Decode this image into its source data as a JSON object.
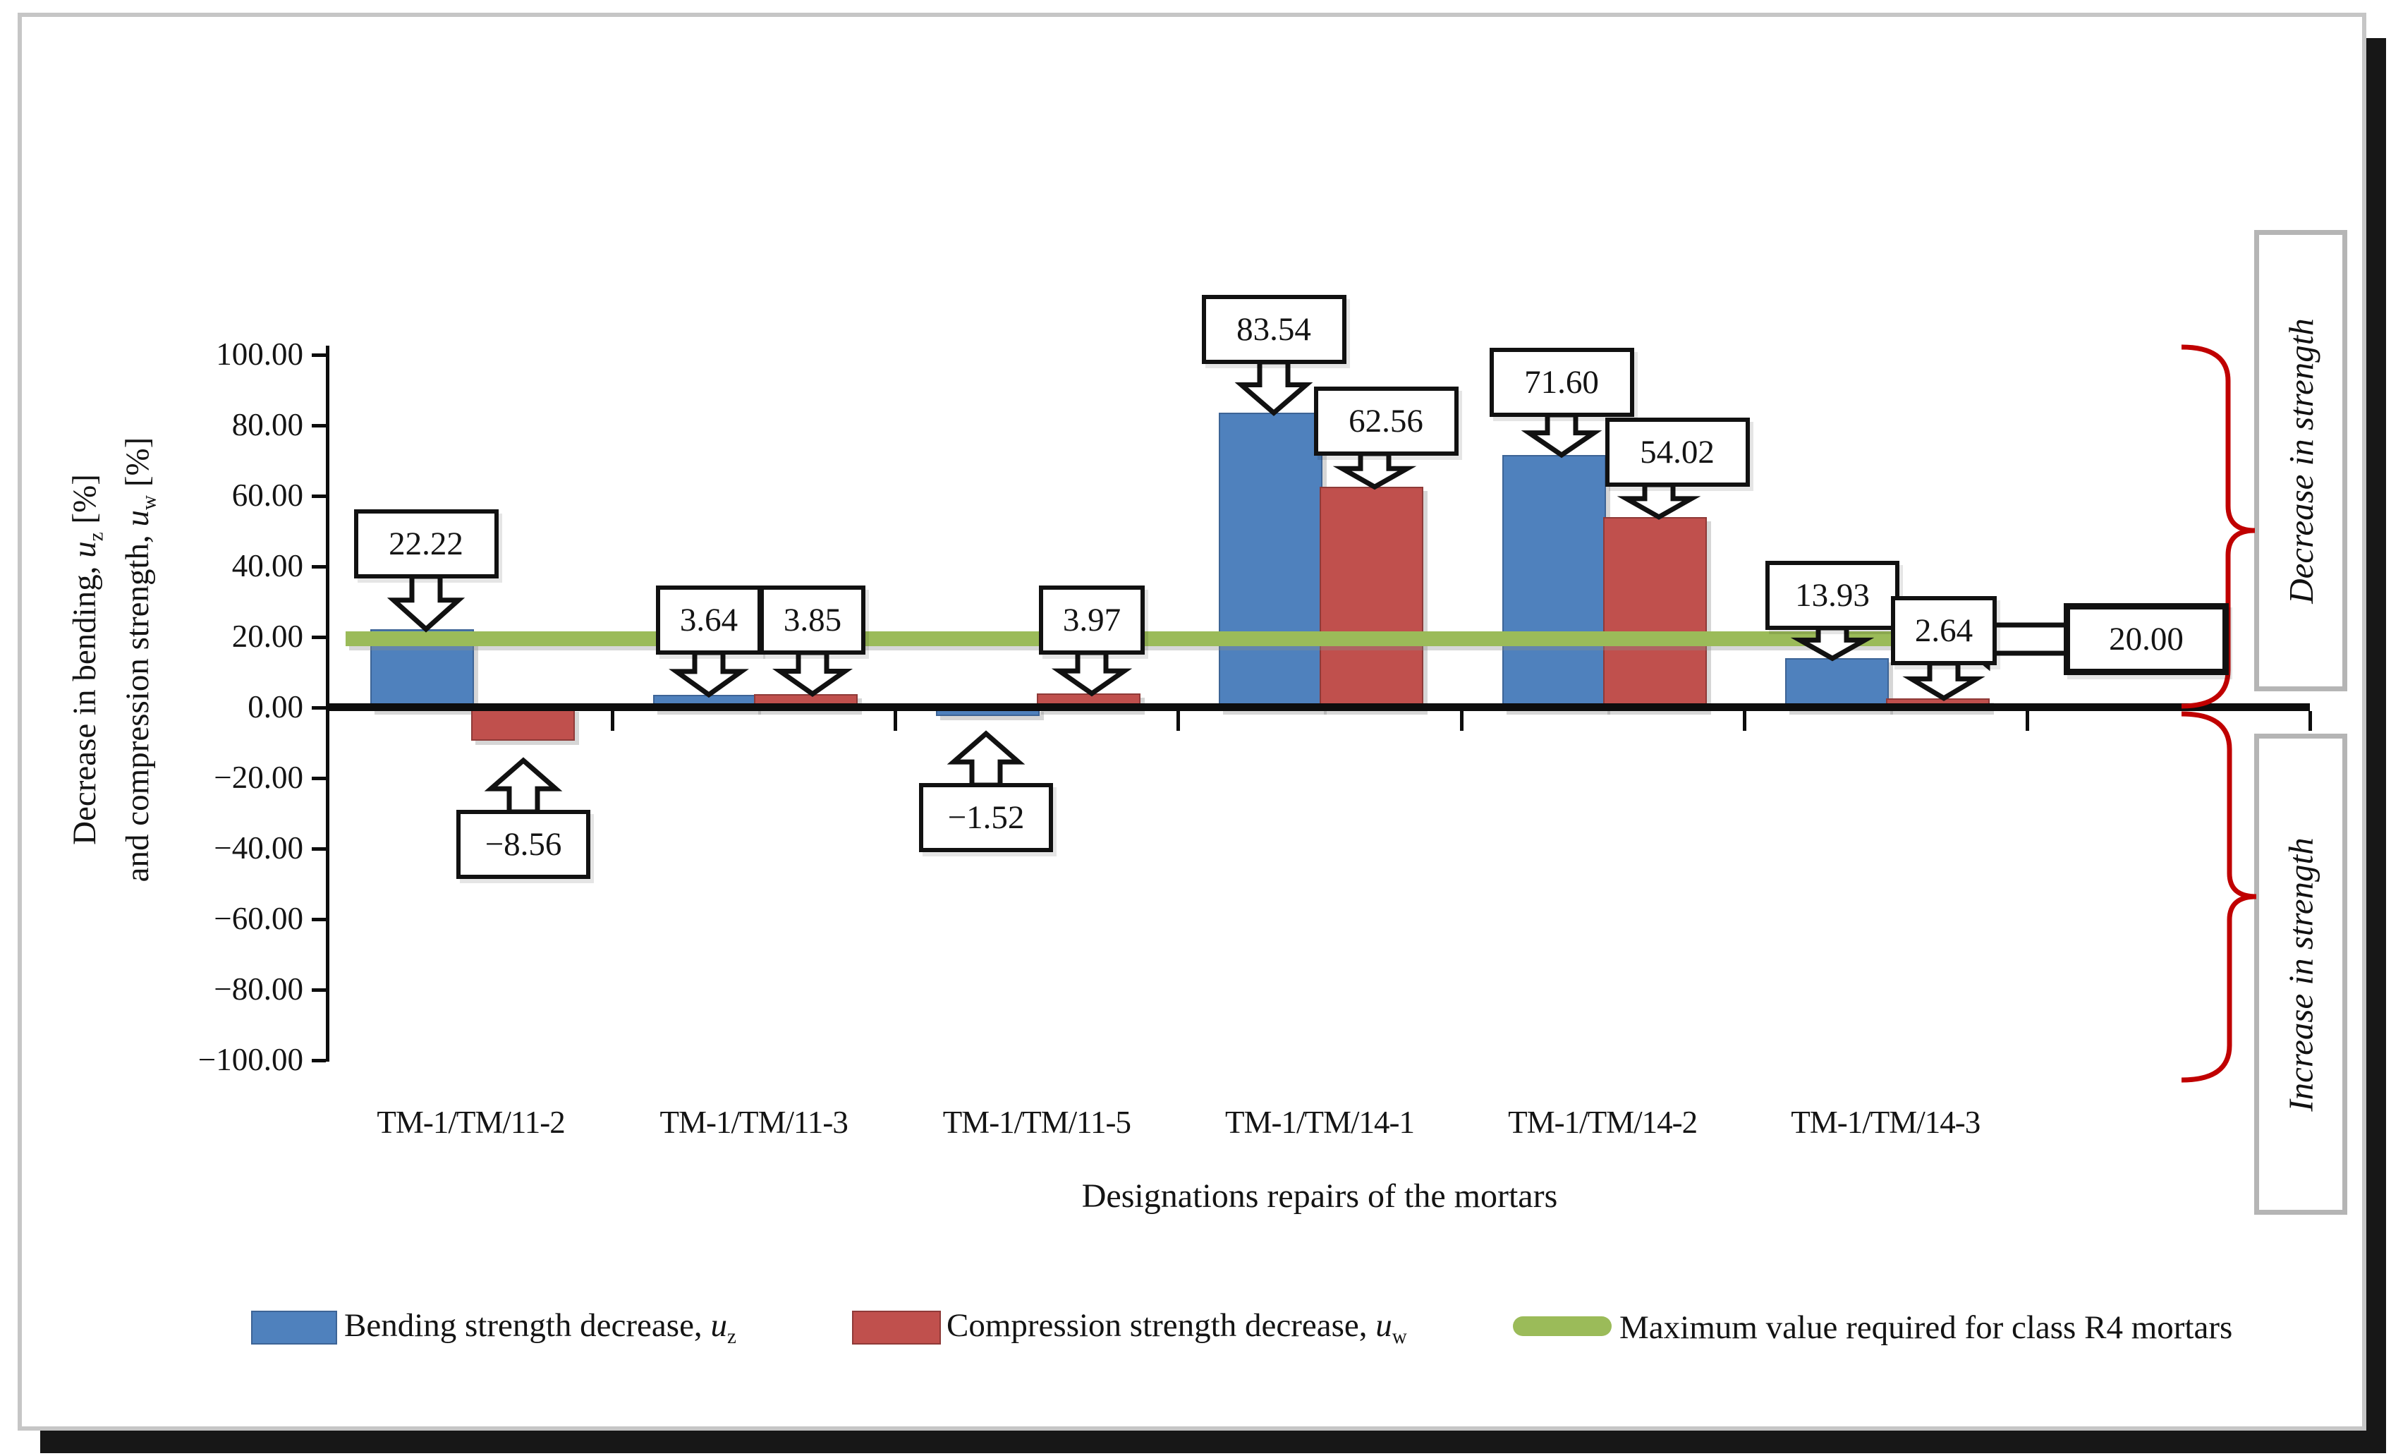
{
  "chart_data": {
    "type": "bar",
    "title": "",
    "categories": [
      "TM-1/TM/11-2",
      "TM-1/TM/11-3",
      "TM-1/TM/11-5",
      "TM-1/TM/14-1",
      "TM-1/TM/14-2",
      "TM-1/TM/14-3"
    ],
    "series": [
      {
        "name": "Bending strength decrease, u_z",
        "color": "#4f81bd",
        "edge": "#3d6496",
        "values": [
          22.22,
          3.64,
          -1.52,
          83.54,
          71.6,
          13.93
        ]
      },
      {
        "name": "Compression strength decrease, u_w",
        "color": "#c0504d",
        "edge": "#8f3a38",
        "values": [
          -8.56,
          3.85,
          3.97,
          62.56,
          54.02,
          2.64
        ]
      }
    ],
    "reference_line": {
      "value": 20,
      "label": "Maximum value required for class R4 mortars",
      "color": "#9bbb59",
      "callout": "20.00"
    },
    "ylim": [
      -100,
      100
    ],
    "ytick_step": 20,
    "ytick_labels": [
      "100.00",
      "80.00",
      "60.00",
      "40.00",
      "20.00",
      "0.00",
      "−20.00",
      "−40.00",
      "−60.00",
      "−80.00",
      "−100.00"
    ],
    "data_labels": [
      "22.22",
      "−8.56",
      "3.64",
      "3.85",
      "−1.52",
      "3.97",
      "83.54",
      "62.56",
      "71.60",
      "54.02",
      "13.93",
      "2.64"
    ],
    "xlabel": "Designations repairs of the mortars",
    "ylabel": {
      "line1_prefix": "Decrease in bending, ",
      "line1_var": "u",
      "line1_sub": "z",
      "line1_suffix": " [%]",
      "line2_prefix": "and compression strength, ",
      "line2_var": "u",
      "line2_sub": "w",
      "line2_suffix": " [%]"
    },
    "legend_position": "bottom",
    "grid": "off"
  },
  "legend": [
    {
      "prefix": "Bending strength decrease, ",
      "var": "u",
      "sub": "z",
      "swatch": "blue-rect",
      "color": "#4f81bd"
    },
    {
      "prefix": "Compression strength decrease, ",
      "var": "u",
      "sub": "w",
      "swatch": "red-rect",
      "color": "#c0504d"
    },
    {
      "label": "Maximum value required for class R4 mortars",
      "swatch": "green-line",
      "color": "#9bbb59"
    }
  ],
  "right_annotations": [
    {
      "label": "Decrease in strength"
    },
    {
      "label": "Increase in strength"
    }
  ],
  "colors": {
    "bending_blue": "#4f81bd",
    "compression_red": "#c0504d",
    "reference_green": "#9bbb59",
    "brace_red": "#c00000",
    "axis_black": "#0d0d0d",
    "sidebox_border": "#b5b5b5"
  }
}
